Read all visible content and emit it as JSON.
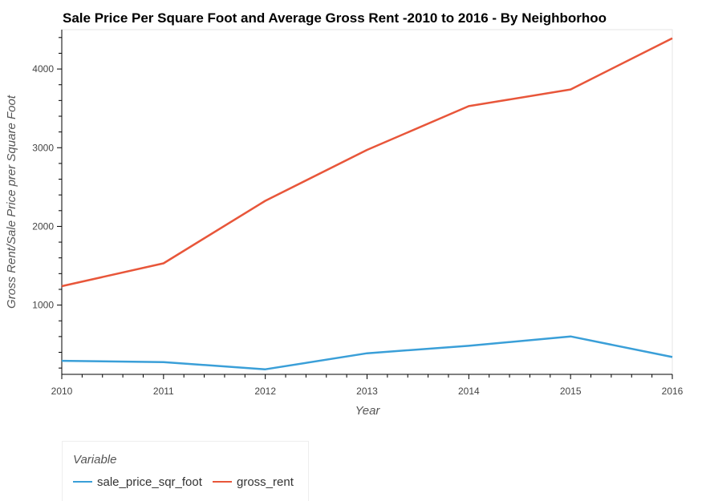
{
  "chart_data": {
    "type": "line",
    "title": "Sale Price Per Square Foot and Average Gross Rent -2010 to 2016 - By Neighborhoo",
    "xlabel": "Year",
    "ylabel": "Gross Rent/Sale Price prer Square Foot",
    "x": [
      2010,
      2011,
      2012,
      2013,
      2014,
      2015,
      2016
    ],
    "xlim": [
      2010,
      2016
    ],
    "ylim": [
      120,
      4500
    ],
    "xticks": [
      "2010",
      "2011",
      "2012",
      "2013",
      "2014",
      "2015",
      "2016"
    ],
    "yticks": [
      "1000",
      "2000",
      "3000",
      "4000"
    ],
    "grid": false,
    "legend": {
      "title": "Variable",
      "placement": "bottom-left"
    },
    "series": [
      {
        "name": "sale_price_sqr_foot",
        "color": "#3a9fd8",
        "values": [
          292,
          276,
          184,
          388,
          483,
          602,
          340
        ]
      },
      {
        "name": "gross_rent",
        "color": "#e8563a",
        "values": [
          1240,
          1531,
          2325,
          2972,
          3528,
          3740,
          4391
        ]
      }
    ]
  }
}
